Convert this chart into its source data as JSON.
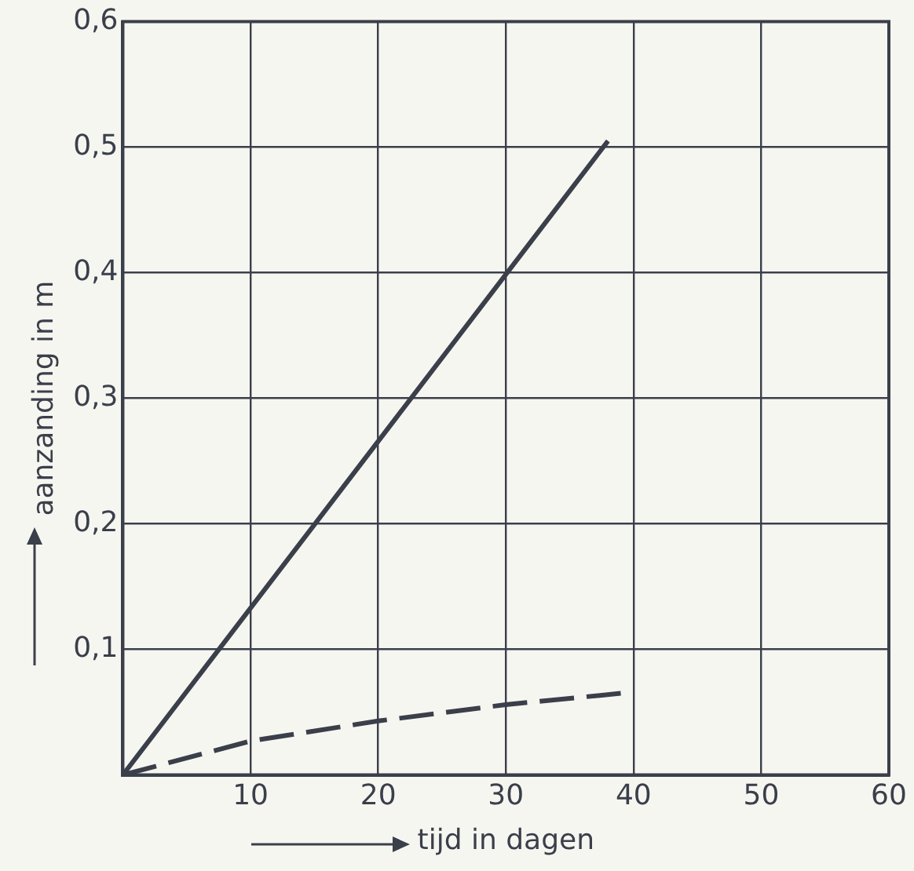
{
  "chart_data": {
    "type": "line",
    "xlabel": "tijd in dagen",
    "ylabel": "aanzanding in m",
    "xlim": [
      0,
      60
    ],
    "ylim": [
      0,
      0.6
    ],
    "xticks": [
      {
        "value": 0,
        "label": null
      },
      10,
      20,
      30,
      40,
      50,
      60
    ],
    "yticks": [
      {
        "value": 0,
        "label": null
      },
      {
        "value": 0.1,
        "label": "0,1"
      },
      {
        "value": 0.2,
        "label": "0,2"
      },
      {
        "value": 0.3,
        "label": "0,3"
      },
      {
        "value": 0.4,
        "label": "0,4"
      },
      {
        "value": 0.5,
        "label": "0,5"
      },
      {
        "value": 0.6,
        "label": "0,6"
      }
    ],
    "grid": true,
    "marker": "none",
    "series": [
      {
        "color": "#3a3f4a",
        "line_style": "solid",
        "x": [
          0,
          38
        ],
        "values": [
          0,
          0.505
        ]
      },
      {
        "color": "#3a3f4a",
        "line_style": "dashed",
        "x": [
          0,
          10,
          20,
          30,
          39
        ],
        "values": [
          0,
          0.027,
          0.043,
          0.056,
          0.065
        ]
      }
    ]
  }
}
